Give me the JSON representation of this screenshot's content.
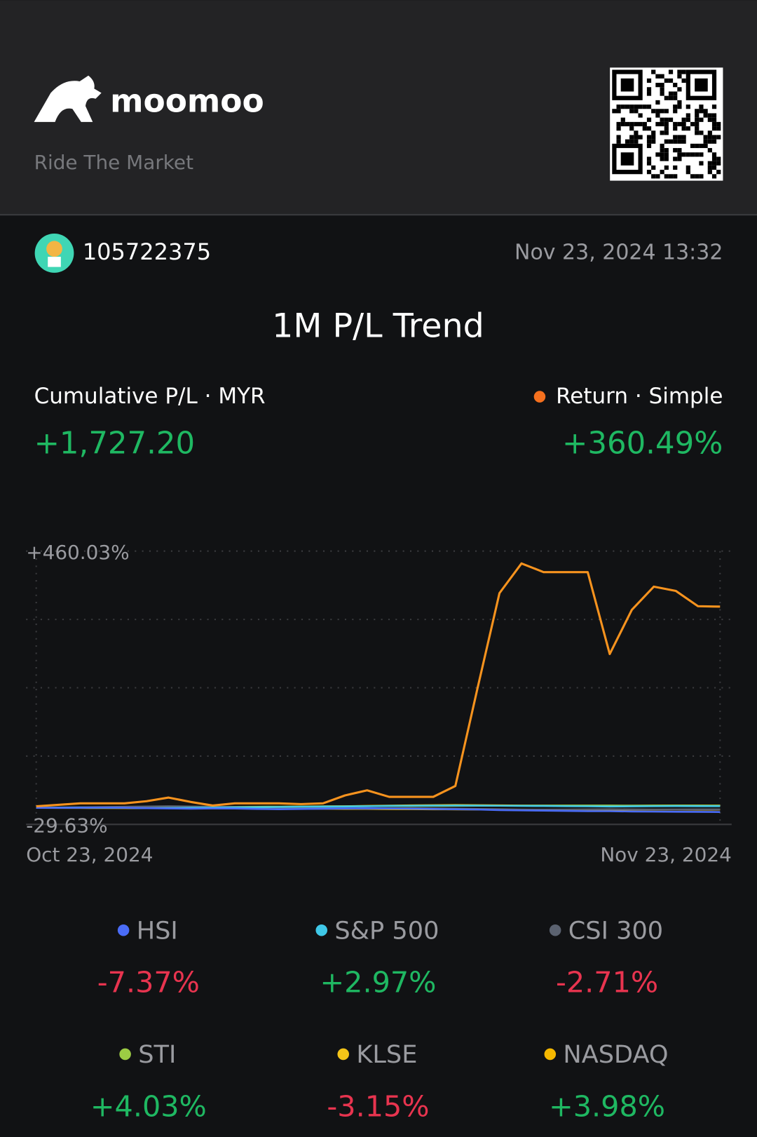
{
  "header": {
    "brand": "moomoo",
    "tagline": "Ride The Market"
  },
  "user": {
    "id": "105722375",
    "timestamp": "Nov 23, 2024 13:32"
  },
  "title": "1M P/L Trend",
  "summary": {
    "pl_label": "Cumulative P/L · MYR",
    "pl_value": "+1,727.20"
  },
  "chart_data": {
    "type": "line",
    "categories": [
      "Oct 23, 2024",
      null,
      null,
      null,
      null,
      null,
      null,
      null,
      null,
      null,
      null,
      null,
      null,
      null,
      null,
      null,
      null,
      null,
      null,
      null,
      null,
      null,
      null,
      null,
      null,
      null,
      null,
      null,
      null,
      null,
      null,
      "Nov 23, 2024"
    ],
    "ylim": [
      -29.63,
      460.03
    ],
    "yticks": [
      {
        "value": -29.63,
        "label": "-29.63%"
      },
      {
        "value": 460.03,
        "label": "+460.03%"
      }
    ],
    "grid": true,
    "series": [
      {
        "name": "Return · Simple",
        "color": "#f7931e",
        "total_label": "+360.49%",
        "values": [
          2.8,
          5.4,
          8.0,
          8.0,
          8.0,
          11.9,
          18.4,
          10.6,
          4.1,
          8.0,
          8.0,
          8.0,
          6.7,
          8.0,
          22.3,
          31.4,
          19.7,
          19.7,
          19.7,
          39.2,
          213.3,
          384.7,
          437.9,
          422.4,
          422.4,
          422.4,
          275.6,
          354.8,
          396.4,
          388.6,
          361.3,
          360.49
        ]
      },
      {
        "name": "HSI",
        "color": "#4a6cf7",
        "total_label": "-7.37%",
        "values": [
          0,
          0,
          0.3,
          0.5,
          0.2,
          -0.5,
          -1,
          -1.5,
          -1,
          -1.2,
          -2,
          -2.5,
          -2,
          -1.5,
          -1,
          -0.5,
          -1,
          -1.5,
          -2,
          -2.5,
          -3,
          -4,
          -4.5,
          -5,
          -5.5,
          -6,
          -6,
          -6.5,
          -6.8,
          -7,
          -7.2,
          -7.37
        ]
      },
      {
        "name": "S&P 500",
        "color": "#3fc8e8",
        "total_label": "+2.97%",
        "values": [
          0,
          0.2,
          0.5,
          0.3,
          0,
          -0.5,
          -0.3,
          0.2,
          0.5,
          0.8,
          1,
          1.5,
          2,
          2.3,
          2.5,
          3,
          3.5,
          3.8,
          4,
          4.2,
          4,
          3.8,
          3.5,
          3.3,
          3,
          2.8,
          2.5,
          2.7,
          3,
          3.2,
          3.1,
          2.97
        ]
      },
      {
        "name": "CSI 300",
        "color": "#5b6270",
        "total_label": "-2.71%",
        "values": [
          0,
          0.5,
          1,
          1.5,
          2,
          2.5,
          3,
          2.5,
          2,
          1.5,
          1,
          0.5,
          0,
          -0.5,
          -1,
          -1.5,
          -1,
          -0.5,
          -1,
          -1.5,
          -2,
          -2.5,
          -3,
          -3.2,
          -3,
          -2.8,
          -2.5,
          -2.8,
          -3,
          -2.9,
          -2.8,
          -2.71
        ]
      },
      {
        "name": "STI",
        "color": "#9ccc44",
        "total_label": "+4.03%",
        "values": [
          0,
          0.2,
          0.4,
          0.6,
          0.8,
          1,
          1.2,
          1.4,
          1.6,
          1.8,
          2,
          2.2,
          2.4,
          2.6,
          2.8,
          3,
          3.2,
          3.4,
          3.5,
          3.6,
          3.7,
          3.8,
          3.9,
          4,
          4.1,
          4.2,
          4.1,
          4,
          4.1,
          4.2,
          4.1,
          4.03
        ]
      },
      {
        "name": "KLSE",
        "color": "#f5c518",
        "total_label": "-3.15%",
        "values": [
          0,
          -0.1,
          -0.2,
          -0.3,
          -0.4,
          -0.5,
          -0.6,
          -0.7,
          -0.8,
          -0.9,
          -1,
          -1.2,
          -1.4,
          -1.6,
          -1.8,
          -2,
          -2.2,
          -2.4,
          -2.6,
          -2.8,
          -3,
          -3.1,
          -3.2,
          -3.3,
          -3.2,
          -3.1,
          -3.2,
          -3.3,
          -3.2,
          -3.1,
          -3.2,
          -3.15
        ]
      },
      {
        "name": "NASDAQ",
        "color": "#f5b800",
        "total_label": "+3.98%",
        "values": [
          0,
          0.3,
          0.6,
          0.4,
          0.1,
          -0.4,
          -0.2,
          0.3,
          0.7,
          1,
          1.3,
          1.8,
          2.3,
          2.7,
          3,
          3.5,
          4,
          4.5,
          4.8,
          5,
          4.8,
          4.5,
          4.2,
          4,
          3.8,
          3.5,
          3.3,
          3.6,
          3.9,
          4.1,
          4,
          3.98
        ]
      }
    ]
  }
}
